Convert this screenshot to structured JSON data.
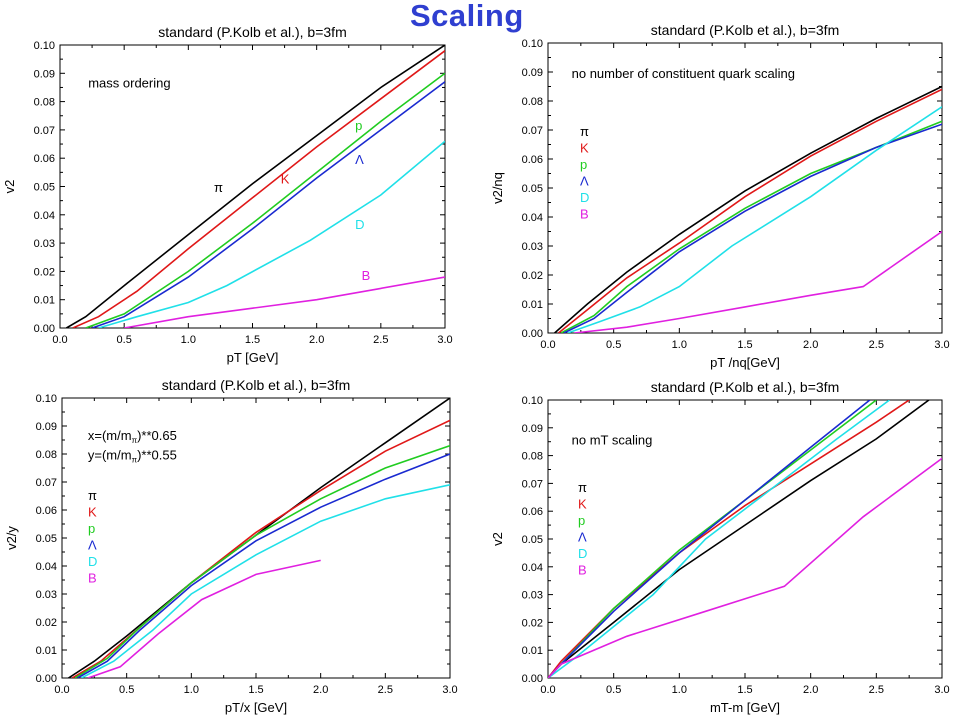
{
  "page_title": "Scaling",
  "legend_names": [
    "π",
    "K",
    "p",
    "Λ",
    "D",
    "B"
  ],
  "colors": {
    "pi": "#000000",
    "K": "#e01818",
    "p": "#20cc20",
    "Lambda": "#1a2ad0",
    "D": "#20e0e8",
    "B": "#e020e0",
    "title": "#2f3fd0"
  },
  "chart_data": [
    {
      "type": "line",
      "title": "standard (P.Kolb et al.), b=3fm",
      "xlabel": "pT [GeV]",
      "ylabel": "v2",
      "xlim": [
        0,
        3.0
      ],
      "ylim": [
        0,
        0.1
      ],
      "xticks": [
        "0.0",
        "0.5",
        "1.0",
        "1.5",
        "2.0",
        "2.5",
        "3.0"
      ],
      "yticks": [
        "0.00",
        "0.01",
        "0.02",
        "0.03",
        "0.04",
        "0.05",
        "0.06",
        "0.07",
        "0.08",
        "0.09",
        "0.10"
      ],
      "annotations": [
        "mass ordering"
      ],
      "series": [
        {
          "name": "π",
          "color": "#000000",
          "points": [
            [
              0.05,
              0
            ],
            [
              0.2,
              0.004
            ],
            [
              0.5,
              0.015
            ],
            [
              1.0,
              0.033
            ],
            [
              1.5,
              0.051
            ],
            [
              2.0,
              0.068
            ],
            [
              2.5,
              0.085
            ],
            [
              3.0,
              0.1
            ]
          ]
        },
        {
          "name": "K",
          "color": "#e01818",
          "points": [
            [
              0.1,
              0
            ],
            [
              0.3,
              0.004
            ],
            [
              0.6,
              0.013
            ],
            [
              1.0,
              0.028
            ],
            [
              1.5,
              0.046
            ],
            [
              2.0,
              0.064
            ],
            [
              2.5,
              0.081
            ],
            [
              3.0,
              0.098
            ]
          ]
        },
        {
          "name": "p",
          "color": "#20cc20",
          "points": [
            [
              0.2,
              0
            ],
            [
              0.5,
              0.005
            ],
            [
              1.0,
              0.02
            ],
            [
              1.5,
              0.037
            ],
            [
              2.0,
              0.055
            ],
            [
              2.5,
              0.073
            ],
            [
              3.0,
              0.09
            ]
          ]
        },
        {
          "name": "Λ",
          "color": "#1a2ad0",
          "points": [
            [
              0.25,
              0
            ],
            [
              0.5,
              0.004
            ],
            [
              1.0,
              0.018
            ],
            [
              1.5,
              0.035
            ],
            [
              2.0,
              0.053
            ],
            [
              2.5,
              0.07
            ],
            [
              3.0,
              0.087
            ]
          ]
        },
        {
          "name": "D",
          "color": "#20e0e8",
          "points": [
            [
              0.3,
              0
            ],
            [
              0.6,
              0.004
            ],
            [
              1.0,
              0.009
            ],
            [
              1.3,
              0.015
            ],
            [
              1.95,
              0.031
            ],
            [
              2.5,
              0.047
            ],
            [
              3.0,
              0.066
            ]
          ]
        },
        {
          "name": "B",
          "color": "#e020e0",
          "points": [
            [
              0.5,
              0
            ],
            [
              1.0,
              0.004
            ],
            [
              1.5,
              0.007
            ],
            [
              2.0,
              0.01
            ],
            [
              2.5,
              0.014
            ],
            [
              3.0,
              0.018
            ]
          ]
        }
      ],
      "labels": [
        {
          "text": "π",
          "x": 1.2,
          "y": 0.048,
          "color": "#000000"
        },
        {
          "text": "K",
          "x": 1.72,
          "y": 0.051,
          "color": "#e01818"
        },
        {
          "text": "p",
          "x": 2.3,
          "y": 0.07,
          "color": "#20cc20"
        },
        {
          "text": "Λ",
          "x": 2.3,
          "y": 0.058,
          "color": "#1a2ad0"
        },
        {
          "text": "D",
          "x": 2.3,
          "y": 0.035,
          "color": "#20e0e8"
        },
        {
          "text": "B",
          "x": 2.35,
          "y": 0.017,
          "color": "#e020e0"
        }
      ]
    },
    {
      "type": "line",
      "title": "standard (P.Kolb et al.), b=3fm",
      "xlabel": "pT /nq[GeV]",
      "ylabel": "v2/nq",
      "xlim": [
        0,
        3.0
      ],
      "ylim": [
        0,
        0.1
      ],
      "xticks": [
        "0.0",
        "0.5",
        "1.0",
        "1.5",
        "2.0",
        "2.5",
        "3.0"
      ],
      "yticks": [
        "0.00",
        "0.01",
        "0.02",
        "0.03",
        "0.04",
        "0.05",
        "0.06",
        "0.07",
        "0.08",
        "0.09",
        "0.10"
      ],
      "annotations": [
        "no number of constituent quark scaling"
      ],
      "series": [
        {
          "name": "π",
          "color": "#000000",
          "points": [
            [
              0.05,
              0
            ],
            [
              0.3,
              0.01
            ],
            [
              0.6,
              0.021
            ],
            [
              1.0,
              0.034
            ],
            [
              1.5,
              0.049
            ],
            [
              2.0,
              0.062
            ],
            [
              2.5,
              0.074
            ],
            [
              3.0,
              0.085
            ]
          ]
        },
        {
          "name": "K",
          "color": "#e01818",
          "points": [
            [
              0.08,
              0
            ],
            [
              0.3,
              0.008
            ],
            [
              0.6,
              0.019
            ],
            [
              1.0,
              0.031
            ],
            [
              1.5,
              0.047
            ],
            [
              2.0,
              0.061
            ],
            [
              2.5,
              0.073
            ],
            [
              3.0,
              0.084
            ]
          ]
        },
        {
          "name": "p",
          "color": "#20cc20",
          "points": [
            [
              0.1,
              0
            ],
            [
              0.35,
              0.006
            ],
            [
              0.6,
              0.016
            ],
            [
              1.0,
              0.029
            ],
            [
              1.5,
              0.043
            ],
            [
              2.0,
              0.055
            ],
            [
              2.5,
              0.064
            ],
            [
              3.0,
              0.073
            ]
          ]
        },
        {
          "name": "Λ",
          "color": "#1a2ad0",
          "points": [
            [
              0.12,
              0
            ],
            [
              0.35,
              0.005
            ],
            [
              0.6,
              0.014
            ],
            [
              1.0,
              0.028
            ],
            [
              1.5,
              0.042
            ],
            [
              2.0,
              0.054
            ],
            [
              2.5,
              0.064
            ],
            [
              3.0,
              0.072
            ]
          ]
        },
        {
          "name": "D",
          "color": "#20e0e8",
          "points": [
            [
              0.15,
              0
            ],
            [
              0.4,
              0.004
            ],
            [
              0.7,
              0.009
            ],
            [
              1.0,
              0.016
            ],
            [
              1.4,
              0.03
            ],
            [
              2.0,
              0.047
            ],
            [
              2.5,
              0.063
            ],
            [
              3.0,
              0.078
            ]
          ]
        },
        {
          "name": "B",
          "color": "#e020e0",
          "points": [
            [
              0.2,
              0
            ],
            [
              0.6,
              0.002
            ],
            [
              1.0,
              0.005
            ],
            [
              1.5,
              0.009
            ],
            [
              2.0,
              0.013
            ],
            [
              2.4,
              0.016
            ],
            [
              3.0,
              0.035
            ]
          ]
        }
      ]
    },
    {
      "type": "line",
      "title": "standard (P.Kolb et al.), b=3fm",
      "xlabel": "pT/x [GeV]",
      "ylabel": "v2/y",
      "xlim": [
        0,
        3.0
      ],
      "ylim": [
        0,
        0.1
      ],
      "xticks": [
        "0.0",
        "0.5",
        "1.0",
        "1.5",
        "2.0",
        "2.5",
        "3.0"
      ],
      "yticks": [
        "0.00",
        "0.01",
        "0.02",
        "0.03",
        "0.04",
        "0.05",
        "0.06",
        "0.07",
        "0.08",
        "0.09",
        "0.10"
      ],
      "annotations": [
        "x=(m/m",
        "π",
        ")**0.65",
        "y=(m/m",
        "π",
        ")**0.55"
      ],
      "series": [
        {
          "name": "π",
          "color": "#000000",
          "points": [
            [
              0.05,
              0
            ],
            [
              0.25,
              0.006
            ],
            [
              0.5,
              0.015
            ],
            [
              1.0,
              0.034
            ],
            [
              1.5,
              0.051
            ],
            [
              2.0,
              0.068
            ],
            [
              2.5,
              0.084
            ],
            [
              3.0,
              0.1
            ]
          ]
        },
        {
          "name": "K",
          "color": "#e01818",
          "points": [
            [
              0.08,
              0
            ],
            [
              0.3,
              0.006
            ],
            [
              0.6,
              0.018
            ],
            [
              1.0,
              0.034
            ],
            [
              1.5,
              0.052
            ],
            [
              2.0,
              0.067
            ],
            [
              2.5,
              0.081
            ],
            [
              3.0,
              0.092
            ]
          ]
        },
        {
          "name": "p",
          "color": "#20cc20",
          "points": [
            [
              0.1,
              0
            ],
            [
              0.35,
              0.007
            ],
            [
              0.6,
              0.018
            ],
            [
              1.0,
              0.034
            ],
            [
              1.5,
              0.051
            ],
            [
              2.0,
              0.064
            ],
            [
              2.5,
              0.075
            ],
            [
              3.0,
              0.083
            ]
          ]
        },
        {
          "name": "Λ",
          "color": "#1a2ad0",
          "points": [
            [
              0.12,
              0
            ],
            [
              0.35,
              0.006
            ],
            [
              0.6,
              0.017
            ],
            [
              1.0,
              0.033
            ],
            [
              1.5,
              0.049
            ],
            [
              2.0,
              0.061
            ],
            [
              2.5,
              0.071
            ],
            [
              3.0,
              0.08
            ]
          ]
        },
        {
          "name": "D",
          "color": "#20e0e8",
          "points": [
            [
              0.15,
              0
            ],
            [
              0.4,
              0.006
            ],
            [
              0.7,
              0.017
            ],
            [
              1.0,
              0.03
            ],
            [
              1.5,
              0.044
            ],
            [
              2.0,
              0.056
            ],
            [
              2.5,
              0.064
            ],
            [
              3.0,
              0.069
            ]
          ]
        },
        {
          "name": "B",
          "color": "#e020e0",
          "points": [
            [
              0.2,
              0
            ],
            [
              0.45,
              0.004
            ],
            [
              0.75,
              0.016
            ],
            [
              1.08,
              0.028
            ],
            [
              1.5,
              0.037
            ],
            [
              2.0,
              0.042
            ]
          ]
        }
      ]
    },
    {
      "type": "line",
      "title": "standard (P.Kolb et al.), b=3fm",
      "xlabel": "mT-m [GeV]",
      "ylabel": "v2",
      "xlim": [
        0,
        3.0
      ],
      "ylim": [
        0,
        0.1
      ],
      "xticks": [
        "0.0",
        "0.5",
        "1.0",
        "1.5",
        "2.0",
        "2.5",
        "3.0"
      ],
      "yticks": [
        "0.00",
        "0.01",
        "0.02",
        "0.03",
        "0.04",
        "0.05",
        "0.06",
        "0.07",
        "0.08",
        "0.09",
        "0.10"
      ],
      "annotations": [
        "no mT scaling"
      ],
      "series": [
        {
          "name": "π",
          "color": "#000000",
          "points": [
            [
              0,
              0
            ],
            [
              0.1,
              0.005
            ],
            [
              0.5,
              0.02
            ],
            [
              1.0,
              0.039
            ],
            [
              1.5,
              0.055
            ],
            [
              2.0,
              0.071
            ],
            [
              2.5,
              0.086
            ],
            [
              2.9,
              0.1
            ]
          ]
        },
        {
          "name": "K",
          "color": "#e01818",
          "points": [
            [
              0,
              0
            ],
            [
              0.1,
              0.006
            ],
            [
              0.5,
              0.025
            ],
            [
              1.0,
              0.045
            ],
            [
              1.5,
              0.062
            ],
            [
              2.0,
              0.077
            ],
            [
              2.5,
              0.092
            ],
            [
              2.75,
              0.1
            ]
          ]
        },
        {
          "name": "p",
          "color": "#20cc20",
          "points": [
            [
              0,
              0
            ],
            [
              0.1,
              0.005
            ],
            [
              0.5,
              0.025
            ],
            [
              1.0,
              0.046
            ],
            [
              1.5,
              0.064
            ],
            [
              2.0,
              0.082
            ],
            [
              2.5,
              0.1
            ]
          ]
        },
        {
          "name": "Λ",
          "color": "#1a2ad0",
          "points": [
            [
              0,
              0
            ],
            [
              0.1,
              0.005
            ],
            [
              0.5,
              0.024
            ],
            [
              1.0,
              0.045
            ],
            [
              1.5,
              0.064
            ],
            [
              2.0,
              0.083
            ],
            [
              2.45,
              0.1
            ]
          ]
        },
        {
          "name": "D",
          "color": "#20e0e8",
          "points": [
            [
              0,
              0
            ],
            [
              0.2,
              0.007
            ],
            [
              0.8,
              0.03
            ],
            [
              1.2,
              0.05
            ],
            [
              1.7,
              0.068
            ],
            [
              2.2,
              0.086
            ],
            [
              2.6,
              0.1
            ]
          ]
        },
        {
          "name": "B",
          "color": "#e020e0",
          "points": [
            [
              0,
              0
            ],
            [
              0.1,
              0.005
            ],
            [
              0.6,
              0.015
            ],
            [
              1.2,
              0.024
            ],
            [
              1.8,
              0.033
            ],
            [
              2.4,
              0.058
            ],
            [
              3.0,
              0.079
            ]
          ]
        }
      ]
    }
  ]
}
